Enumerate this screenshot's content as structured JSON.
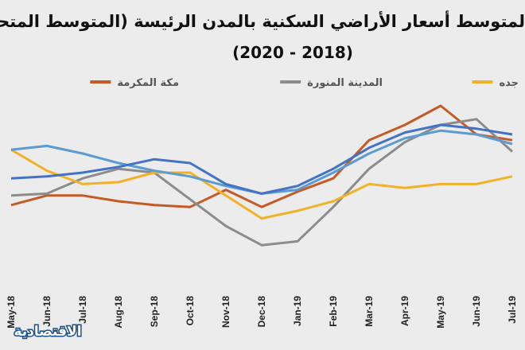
{
  "chart_data": {
    "type": "line",
    "title_line1": "لمتوسط أسعار الأراضي السكنية بالمدن الرئيسة (المتوسط المتحرك",
    "title_line2": "(2020 - 2018)",
    "categories": [
      "May-18",
      "Jun-18",
      "Jul-18",
      "Aug-18",
      "Sep-18",
      "Oct-18",
      "Nov-18",
      "Dec-18",
      "Jan-19",
      "Feb-19",
      "Mar-19",
      "Apr-19",
      "May-19",
      "Jun-19",
      "Jul-19"
    ],
    "legend_placement": "top",
    "grid": false,
    "ylim": [
      0,
      100
    ],
    "series": [
      {
        "name": "مكة المكرمة",
        "color": "#c55a27",
        "values": [
          53,
          58,
          58,
          55,
          53,
          52,
          61,
          52,
          60,
          67,
          87,
          95,
          105,
          90,
          87
        ]
      },
      {
        "name": "المدينة المنورة",
        "color": "#8c8c8c",
        "values": [
          58,
          59,
          67,
          72,
          70,
          56,
          42,
          32,
          34,
          52,
          72,
          86,
          95,
          98,
          81
        ]
      },
      {
        "name": "جده",
        "color": "#f2b228",
        "values": [
          82,
          71,
          64,
          65,
          70,
          70,
          58,
          46,
          50,
          55,
          64,
          62,
          64,
          64,
          68
        ]
      },
      {
        "name": "",
        "color": "#5b9bd5",
        "values": [
          82,
          84,
          80,
          75,
          71,
          68,
          63,
          59,
          61,
          70,
          80,
          88,
          92,
          90,
          85
        ]
      },
      {
        "name": "",
        "color": "#4472c4",
        "values": [
          67,
          68,
          70,
          73,
          77,
          75,
          64,
          59,
          63,
          72,
          83,
          91,
          95,
          93,
          90
        ]
      }
    ]
  },
  "logo": {
    "text": "الاقتصادية"
  }
}
